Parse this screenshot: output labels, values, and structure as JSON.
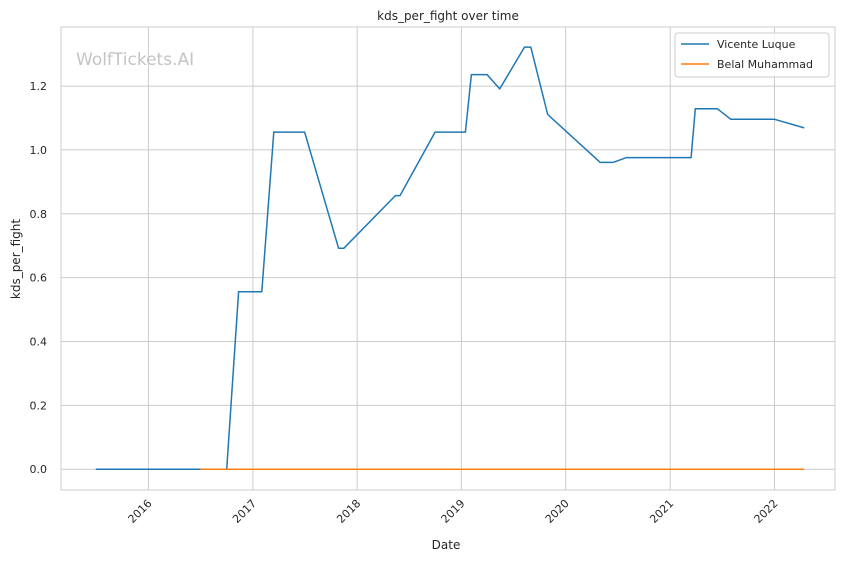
{
  "chart_data": {
    "type": "line",
    "title": "kds_per_fight over time",
    "xlabel": "Date",
    "ylabel": "kds_per_fight",
    "watermark": "WolfTickets.AI",
    "xlim": [
      "2015-03-01",
      "2022-08-01"
    ],
    "ylim": [
      -0.065,
      1.385
    ],
    "x_ticks": [
      "2016",
      "2017",
      "2018",
      "2019",
      "2020",
      "2021",
      "2022"
    ],
    "y_ticks": [
      "0.0",
      "0.2",
      "0.4",
      "0.6",
      "0.8",
      "1.0",
      "1.2"
    ],
    "grid": true,
    "legend_position": "top-right",
    "series": [
      {
        "name": "Vicente Luque",
        "color": "#1f77b4",
        "points": [
          [
            "2015-07-01",
            0.0
          ],
          [
            "2016-10-01",
            0.0
          ],
          [
            "2016-11-12",
            0.556
          ],
          [
            "2017-02-01",
            0.556
          ],
          [
            "2017-03-15",
            1.056
          ],
          [
            "2017-07-01",
            1.056
          ],
          [
            "2017-10-28",
            0.692
          ],
          [
            "2017-11-15",
            0.692
          ],
          [
            "2018-05-15",
            0.857
          ],
          [
            "2018-05-31",
            0.857
          ],
          [
            "2018-10-01",
            1.056
          ],
          [
            "2019-01-15",
            1.056
          ],
          [
            "2019-02-05",
            1.236
          ],
          [
            "2019-04-01",
            1.236
          ],
          [
            "2019-05-15",
            1.191
          ],
          [
            "2019-08-10",
            1.322
          ],
          [
            "2019-09-01",
            1.322
          ],
          [
            "2019-10-30",
            1.111
          ],
          [
            "2020-05-01",
            0.961
          ],
          [
            "2020-06-15",
            0.961
          ],
          [
            "2020-08-01",
            0.976
          ],
          [
            "2021-03-15",
            0.976
          ],
          [
            "2021-03-30",
            1.129
          ],
          [
            "2021-06-15",
            1.129
          ],
          [
            "2021-08-01",
            1.096
          ],
          [
            "2022-01-01",
            1.096
          ],
          [
            "2022-04-15",
            1.069
          ]
        ]
      },
      {
        "name": "Belal Muhammad",
        "color": "#ff7f0e",
        "points": [
          [
            "2016-07-01",
            0.0
          ],
          [
            "2022-04-15",
            0.0
          ]
        ]
      }
    ]
  }
}
